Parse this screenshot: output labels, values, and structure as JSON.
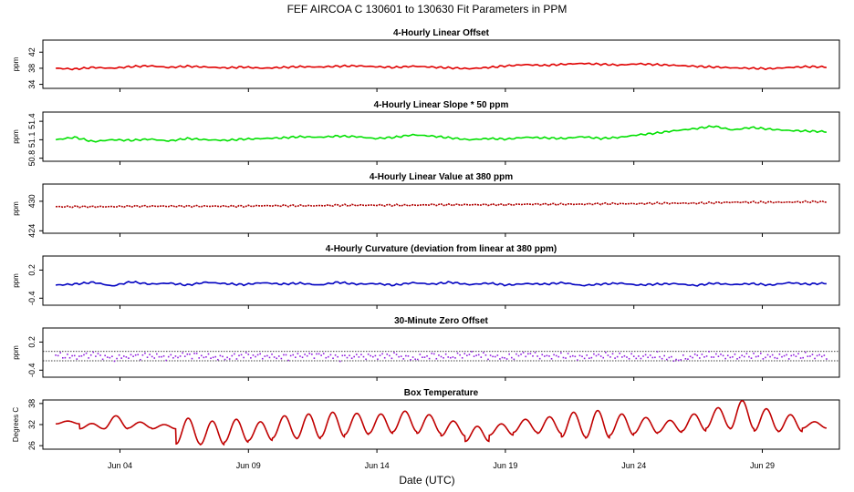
{
  "figure": {
    "title": "FEF   AIRCOA C   130601 to 130630   Fit Parameters in PPM",
    "xlabel": "Date (UTC)",
    "xticks": [
      "Jun 04",
      "Jun 09",
      "Jun 14",
      "Jun 19",
      "Jun 24",
      "Jun 29"
    ]
  },
  "chart_data": [
    {
      "type": "line",
      "title": "4-Hourly Linear Offset",
      "ylabel": "ppm",
      "yticks": [
        "34",
        "38",
        "42"
      ],
      "ylim": [
        33,
        45
      ],
      "xlim": [
        "2013-06-01",
        "2013-07-02"
      ],
      "color": "#e00000",
      "style": "line",
      "series": [
        {
          "x_start": "2013-06-01T12:00",
          "x_end": "2013-07-01T12:00",
          "values": [
            38.0,
            37.8,
            38.2,
            38.0,
            38.4,
            38.6,
            38.2,
            38.5,
            38.3,
            38.1,
            38.3,
            38.0,
            38.2,
            38.4,
            38.3,
            38.5,
            38.6,
            38.4,
            38.2,
            38.5,
            38.3,
            38.1,
            37.9,
            38.2,
            38.6,
            38.9,
            38.7,
            39.0,
            39.2,
            39.0,
            38.8,
            39.1,
            38.9,
            38.7,
            38.5,
            38.3,
            38.1,
            38.0,
            37.9,
            38.2,
            38.4,
            38.3
          ]
        }
      ]
    },
    {
      "type": "line",
      "title": "4-Hourly Linear Slope * 50 ppm",
      "ylabel": "ppm",
      "yticks": [
        "50.8",
        "51.1",
        "51.4"
      ],
      "ylim": [
        50.75,
        51.55
      ],
      "xlim": [
        "2013-06-01",
        "2013-07-02"
      ],
      "color": "#00e000",
      "style": "line",
      "series": [
        {
          "x_start": "2013-06-01T12:00",
          "x_end": "2013-07-01T12:00",
          "values": [
            51.1,
            51.14,
            51.07,
            51.1,
            51.09,
            51.11,
            51.08,
            51.12,
            51.1,
            51.09,
            51.11,
            51.12,
            51.13,
            51.15,
            51.14,
            51.16,
            51.15,
            51.12,
            51.14,
            51.18,
            51.16,
            51.13,
            51.1,
            51.12,
            51.11,
            51.14,
            51.13,
            51.12,
            51.15,
            51.12,
            51.14,
            51.18,
            51.21,
            51.25,
            51.28,
            51.32,
            51.26,
            51.3,
            51.27,
            51.25,
            51.24,
            51.23
          ]
        }
      ]
    },
    {
      "type": "line",
      "title": "4-Hourly Linear Value at 380 ppm",
      "ylabel": "ppm",
      "yticks": [
        "424",
        "430"
      ],
      "ylim": [
        423.5,
        433.5
      ],
      "xlim": [
        "2013-06-01",
        "2013-07-02"
      ],
      "color": "#b00000",
      "style": "dotted",
      "series": [
        {
          "x_start": "2013-06-01T12:00",
          "x_end": "2013-07-01T12:00",
          "values": [
            428.9,
            428.9,
            428.9,
            428.9,
            429.0,
            429.0,
            429.0,
            429.0,
            429.0,
            429.0,
            429.0,
            429.1,
            429.1,
            429.1,
            429.1,
            429.2,
            429.2,
            429.2,
            429.2,
            429.2,
            429.3,
            429.3,
            429.3,
            429.3,
            429.3,
            429.4,
            429.4,
            429.4,
            429.4,
            429.5,
            429.5,
            429.5,
            429.6,
            429.6,
            429.6,
            429.7,
            429.8,
            429.8,
            429.8,
            429.8,
            429.9,
            429.9
          ]
        }
      ]
    },
    {
      "type": "line",
      "title": "4-Hourly Curvature (deviation from linear at 380 ppm)",
      "ylabel": "ppm",
      "yticks": [
        "-0.4",
        "0.2"
      ],
      "ylim": [
        -0.55,
        0.5
      ],
      "xlim": [
        "2013-06-01",
        "2013-07-02"
      ],
      "color": "#0000c0",
      "style": "line",
      "series": [
        {
          "x_start": "2013-06-01T12:00",
          "x_end": "2013-07-01T12:00",
          "values": [
            -0.12,
            -0.1,
            -0.06,
            -0.14,
            -0.05,
            -0.1,
            -0.08,
            -0.12,
            -0.06,
            -0.09,
            -0.11,
            -0.07,
            -0.1,
            -0.08,
            -0.12,
            -0.06,
            -0.1,
            -0.09,
            -0.12,
            -0.07,
            -0.1,
            -0.06,
            -0.11,
            -0.08,
            -0.12,
            -0.09,
            -0.1,
            -0.07,
            -0.13,
            -0.1,
            -0.08,
            -0.12,
            -0.1,
            -0.09,
            -0.13,
            -0.08,
            -0.11,
            -0.09,
            -0.12,
            -0.07,
            -0.1,
            -0.08
          ]
        }
      ]
    },
    {
      "type": "scatter",
      "title": "30-Minute Zero Offset",
      "ylabel": "ppm",
      "yticks": [
        "-0.4",
        "0.2"
      ],
      "ylim": [
        -0.55,
        0.5
      ],
      "xlim": [
        "2013-06-01",
        "2013-07-02"
      ],
      "color": "#9020e0",
      "style": "dots",
      "reference_lines": [
        0.0,
        -0.2
      ],
      "series": [
        {
          "x_start": "2013-06-01T12:00",
          "x_end": "2013-07-01T12:00",
          "values": [
            -0.08,
            -0.12,
            -0.06,
            -0.15,
            -0.1,
            -0.09,
            -0.13,
            -0.07,
            -0.11,
            -0.14,
            -0.08,
            -0.1,
            -0.12,
            -0.09,
            -0.07,
            -0.13,
            -0.1,
            -0.11,
            -0.08,
            -0.15,
            -0.09,
            -0.12,
            -0.06,
            -0.1,
            -0.14,
            -0.05,
            -0.11,
            -0.09,
            -0.13,
            -0.08,
            -0.1,
            -0.12,
            -0.09,
            -0.18,
            -0.1,
            -0.08,
            -0.12,
            -0.09,
            -0.11,
            -0.1,
            -0.09,
            -0.11
          ]
        }
      ]
    },
    {
      "type": "line",
      "title": "Box Temperature",
      "ylabel": "Degrees C",
      "yticks": [
        "26",
        "32",
        "38"
      ],
      "ylim": [
        25,
        39
      ],
      "xlim": [
        "2013-06-01",
        "2013-07-02"
      ],
      "color": "#c00000",
      "style": "line",
      "series": [
        {
          "x_start": "2013-06-01T12:00",
          "x_end": "2013-07-01T12:00",
          "peaks": [
            33.0,
            32.3,
            34.5,
            32.7,
            32.0,
            33.8,
            33.0,
            33.5,
            32.8,
            34.5,
            35.0,
            35.5,
            35.2,
            35.0,
            35.8,
            34.8,
            33.0,
            31.5,
            32.2,
            33.5,
            34.2,
            35.5,
            36.0,
            35.0,
            34.0,
            33.2,
            35.0,
            36.8,
            38.8,
            36.5,
            34.8,
            32.8
          ],
          "troughs": [
            32.2,
            30.8,
            30.8,
            31.0,
            30.8,
            26.5,
            26.3,
            27.0,
            27.5,
            28.2,
            28.0,
            28.5,
            29.2,
            29.5,
            30.0,
            29.5,
            28.8,
            27.2,
            29.0,
            29.8,
            29.5,
            28.5,
            28.2,
            29.0,
            29.5,
            29.8,
            30.2,
            31.0,
            30.8,
            30.2,
            30.0,
            31.0
          ]
        }
      ]
    }
  ]
}
